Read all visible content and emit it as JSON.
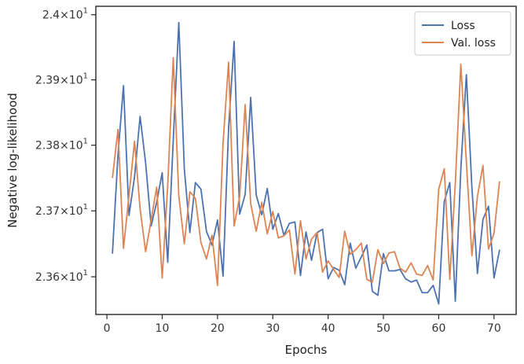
{
  "chart_data": {
    "type": "line",
    "xlabel": "Epochs",
    "ylabel": "Negative log-likelihood",
    "yscale": "log",
    "xlim": [
      -2,
      74
    ],
    "ylim": [
      23.543,
      24.013
    ],
    "x_ticks": [
      0,
      10,
      20,
      30,
      40,
      50,
      60,
      70
    ],
    "x_tick_labels": [
      "0",
      "10",
      "20",
      "30",
      "40",
      "50",
      "60",
      "70"
    ],
    "y_ticks": [
      23.6,
      23.7,
      23.8,
      23.9,
      24.0
    ],
    "y_tick_labels": [
      {
        "mantissa": "2.36",
        "exponent": "1"
      },
      {
        "mantissa": "2.37",
        "exponent": "1"
      },
      {
        "mantissa": "2.38",
        "exponent": "1"
      },
      {
        "mantissa": "2.39",
        "exponent": "1"
      },
      {
        "mantissa": "2.4",
        "exponent": "1"
      }
    ],
    "y_tick_base": "10",
    "legend_position": "top-right",
    "grid": false,
    "series": [
      {
        "name": "Loss",
        "color": "#4c72b0",
        "x": [
          1,
          2,
          3,
          4,
          5,
          6,
          7,
          8,
          9,
          10,
          11,
          12,
          13,
          14,
          15,
          16,
          17,
          18,
          19,
          20,
          21,
          22,
          23,
          24,
          25,
          26,
          27,
          28,
          29,
          30,
          31,
          32,
          33,
          34,
          35,
          36,
          37,
          38,
          39,
          40,
          41,
          42,
          43,
          44,
          45,
          46,
          47,
          48,
          49,
          50,
          51,
          52,
          53,
          54,
          55,
          56,
          57,
          58,
          59,
          60,
          61,
          62,
          63,
          64,
          65,
          66,
          67,
          68,
          69,
          70,
          71
        ],
        "y": [
          23.635,
          23.785,
          23.891,
          23.693,
          23.752,
          23.844,
          23.773,
          23.677,
          23.713,
          23.758,
          23.622,
          23.808,
          23.988,
          23.764,
          23.667,
          23.743,
          23.733,
          23.669,
          23.648,
          23.686,
          23.601,
          23.825,
          23.959,
          23.695,
          23.725,
          23.873,
          23.724,
          23.694,
          23.734,
          23.672,
          23.696,
          23.663,
          23.681,
          23.683,
          23.602,
          23.668,
          23.625,
          23.667,
          23.672,
          23.597,
          23.614,
          23.61,
          23.588,
          23.651,
          23.613,
          23.63,
          23.648,
          23.578,
          23.572,
          23.635,
          23.609,
          23.609,
          23.611,
          23.597,
          23.592,
          23.595,
          23.576,
          23.576,
          23.587,
          23.559,
          23.714,
          23.743,
          23.563,
          23.764,
          23.908,
          23.736,
          23.605,
          23.687,
          23.707,
          23.598,
          23.641
        ]
      },
      {
        "name": "Val. loss",
        "color": "#dd8452",
        "x": [
          1,
          2,
          3,
          4,
          5,
          6,
          7,
          8,
          9,
          10,
          11,
          12,
          13,
          14,
          15,
          16,
          17,
          18,
          19,
          20,
          21,
          22,
          23,
          24,
          25,
          26,
          27,
          28,
          29,
          30,
          31,
          32,
          33,
          34,
          35,
          36,
          37,
          38,
          39,
          40,
          41,
          42,
          43,
          44,
          45,
          46,
          47,
          48,
          49,
          50,
          51,
          52,
          53,
          54,
          55,
          56,
          57,
          58,
          59,
          60,
          61,
          62,
          63,
          64,
          65,
          66,
          67,
          68,
          69,
          70,
          71
        ],
        "y": [
          23.75,
          23.824,
          23.643,
          23.724,
          23.806,
          23.703,
          23.638,
          23.686,
          23.736,
          23.598,
          23.739,
          23.934,
          23.723,
          23.65,
          23.729,
          23.719,
          23.652,
          23.627,
          23.663,
          23.587,
          23.803,
          23.927,
          23.677,
          23.721,
          23.862,
          23.711,
          23.669,
          23.713,
          23.665,
          23.699,
          23.659,
          23.662,
          23.671,
          23.604,
          23.685,
          23.627,
          23.657,
          23.667,
          23.607,
          23.624,
          23.611,
          23.599,
          23.669,
          23.634,
          23.641,
          23.651,
          23.596,
          23.592,
          23.641,
          23.62,
          23.636,
          23.638,
          23.613,
          23.607,
          23.621,
          23.604,
          23.602,
          23.617,
          23.595,
          23.733,
          23.764,
          23.596,
          23.742,
          23.924,
          23.774,
          23.632,
          23.722,
          23.769,
          23.642,
          23.666,
          23.745
        ]
      }
    ]
  }
}
